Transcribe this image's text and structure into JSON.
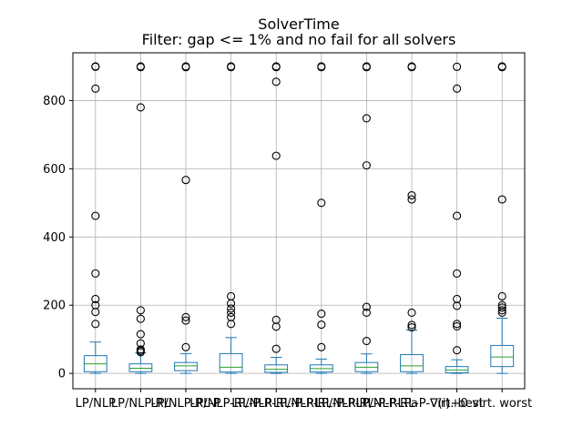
{
  "chart_data": {
    "type": "box",
    "title": "SolverTime",
    "subtitle": "Filter: gap <= 1% and no fail for all solvers",
    "xlabel": "",
    "ylabel": "",
    "ylim": [
      -45,
      940
    ],
    "yticks": [
      0,
      200,
      400,
      600,
      800
    ],
    "grid": true,
    "colors": {
      "box": "#1f77b4",
      "median": "#2ca02c",
      "flier": "#000000",
      "grid": "#b0b0b0"
    },
    "categories": [
      "LP/NLP",
      "LP/NLP-RL",
      "LP/NLP-RL-P",
      "LP/NLP-RL-P-R",
      "LP/NLP-RL-P-RL",
      "LP/NLP-RL-P-RLP",
      "LP/NLP-RL-P-RLPa",
      "LP/NLP-RL-P-∇(i)+0",
      "virt. best",
      "virt. worst"
    ],
    "boxes": [
      {
        "whislo": 0,
        "q1": 5,
        "med": 28,
        "q3": 52,
        "whishi": 92,
        "fliers": [
          145,
          180,
          200,
          218,
          293,
          462,
          835,
          899,
          900
        ]
      },
      {
        "whislo": 0,
        "q1": 5,
        "med": 15,
        "q3": 28,
        "whishi": 60,
        "fliers": [
          62,
          66,
          70,
          88,
          115,
          160,
          185,
          780,
          898,
          900
        ]
      },
      {
        "whislo": 0,
        "q1": 8,
        "med": 22,
        "q3": 32,
        "whishi": 58,
        "fliers": [
          77,
          155,
          165,
          567,
          898,
          900
        ]
      },
      {
        "whislo": 0,
        "q1": 4,
        "med": 18,
        "q3": 58,
        "whishi": 105,
        "fliers": [
          145,
          165,
          178,
          190,
          205,
          226,
          898,
          900
        ]
      },
      {
        "whislo": 0,
        "q1": 3,
        "med": 12,
        "q3": 25,
        "whishi": 47,
        "fliers": [
          72,
          137,
          157,
          638,
          855,
          898,
          900
        ]
      },
      {
        "whislo": 0,
        "q1": 4,
        "med": 14,
        "q3": 25,
        "whishi": 42,
        "fliers": [
          77,
          143,
          175,
          500,
          898,
          900
        ]
      },
      {
        "whislo": 0,
        "q1": 5,
        "med": 18,
        "q3": 32,
        "whishi": 57,
        "fliers": [
          95,
          178,
          195,
          610,
          748,
          898,
          900
        ]
      },
      {
        "whislo": 0,
        "q1": 5,
        "med": 22,
        "q3": 55,
        "whishi": 127,
        "fliers": [
          135,
          142,
          178,
          510,
          522,
          898,
          900
        ]
      },
      {
        "whislo": 0,
        "q1": 2,
        "med": 10,
        "q3": 20,
        "whishi": 40,
        "fliers": [
          68,
          138,
          145,
          198,
          218,
          293,
          462,
          835,
          899
        ]
      },
      {
        "whislo": 0,
        "q1": 20,
        "med": 48,
        "q3": 82,
        "whishi": 162,
        "fliers": [
          178,
          185,
          193,
          200,
          226,
          510,
          898,
          900
        ]
      }
    ]
  }
}
